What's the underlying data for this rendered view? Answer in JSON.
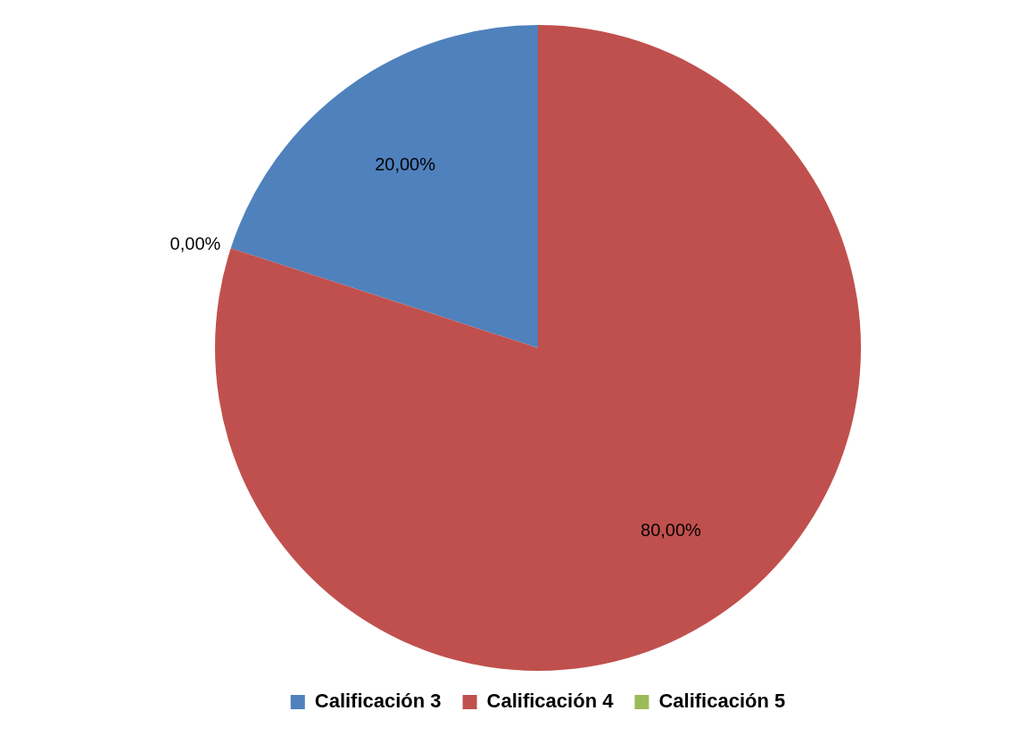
{
  "chart_data": {
    "type": "pie",
    "categories": [
      "Calificación 3",
      "Calificación 4",
      "Calificación 5"
    ],
    "values": [
      20,
      80,
      0
    ],
    "colors": [
      "#4f81bd",
      "#c0504d",
      "#9bbb59"
    ],
    "value_labels": [
      "20,00%",
      "80,00%",
      "0,00%"
    ],
    "legend": "bottom"
  }
}
